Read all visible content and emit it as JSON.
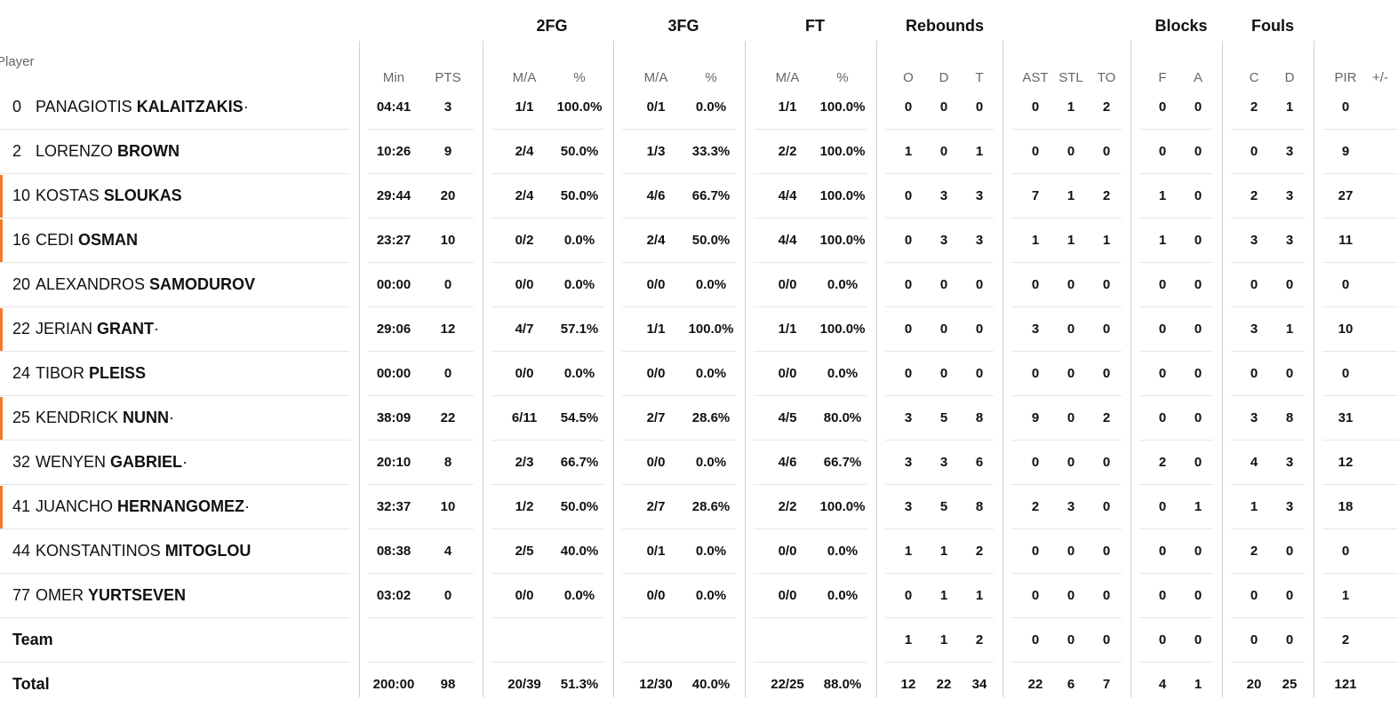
{
  "header": {
    "groups": [
      "2FG",
      "3FG",
      "FT",
      "Rebounds",
      "Blocks",
      "Fouls"
    ],
    "player_label": "Player",
    "subheaders": [
      "Min",
      "PTS",
      "M/A",
      "%",
      "M/A",
      "%",
      "M/A",
      "%",
      "O",
      "D",
      "T",
      "AST",
      "STL",
      "TO",
      "F",
      "A",
      "C",
      "D",
      "PIR",
      "+/-"
    ]
  },
  "accent_color": "#f07a2a",
  "players": [
    {
      "num": "0",
      "first": "PANAGIOTIS",
      "last": "KALAITZAKIS",
      "mark": "·",
      "starter": false,
      "stats": [
        "04:41",
        "3",
        "1/1",
        "100.0%",
        "0/1",
        "0.0%",
        "1/1",
        "100.0%",
        "0",
        "0",
        "0",
        "0",
        "1",
        "2",
        "0",
        "0",
        "2",
        "1",
        "0",
        ""
      ]
    },
    {
      "num": "2",
      "first": "LORENZO",
      "last": "BROWN",
      "mark": "",
      "starter": false,
      "stats": [
        "10:26",
        "9",
        "2/4",
        "50.0%",
        "1/3",
        "33.3%",
        "2/2",
        "100.0%",
        "1",
        "0",
        "1",
        "0",
        "0",
        "0",
        "0",
        "0",
        "0",
        "3",
        "9",
        ""
      ]
    },
    {
      "num": "10",
      "first": "KOSTAS",
      "last": "SLOUKAS",
      "mark": "",
      "starter": true,
      "stats": [
        "29:44",
        "20",
        "2/4",
        "50.0%",
        "4/6",
        "66.7%",
        "4/4",
        "100.0%",
        "0",
        "3",
        "3",
        "7",
        "1",
        "2",
        "1",
        "0",
        "2",
        "3",
        "27",
        ""
      ]
    },
    {
      "num": "16",
      "first": "CEDI",
      "last": "OSMAN",
      "mark": "",
      "starter": true,
      "stats": [
        "23:27",
        "10",
        "0/2",
        "0.0%",
        "2/4",
        "50.0%",
        "4/4",
        "100.0%",
        "0",
        "3",
        "3",
        "1",
        "1",
        "1",
        "1",
        "0",
        "3",
        "3",
        "11",
        ""
      ]
    },
    {
      "num": "20",
      "first": "ALEXANDROS",
      "last": "SAMODUROV",
      "mark": "",
      "starter": false,
      "stats": [
        "00:00",
        "0",
        "0/0",
        "0.0%",
        "0/0",
        "0.0%",
        "0/0",
        "0.0%",
        "0",
        "0",
        "0",
        "0",
        "0",
        "0",
        "0",
        "0",
        "0",
        "0",
        "0",
        ""
      ]
    },
    {
      "num": "22",
      "first": "JERIAN",
      "last": "GRANT",
      "mark": "·",
      "starter": true,
      "stats": [
        "29:06",
        "12",
        "4/7",
        "57.1%",
        "1/1",
        "100.0%",
        "1/1",
        "100.0%",
        "0",
        "0",
        "0",
        "3",
        "0",
        "0",
        "0",
        "0",
        "3",
        "1",
        "10",
        ""
      ]
    },
    {
      "num": "24",
      "first": "TIBOR",
      "last": "PLEISS",
      "mark": "",
      "starter": false,
      "stats": [
        "00:00",
        "0",
        "0/0",
        "0.0%",
        "0/0",
        "0.0%",
        "0/0",
        "0.0%",
        "0",
        "0",
        "0",
        "0",
        "0",
        "0",
        "0",
        "0",
        "0",
        "0",
        "0",
        ""
      ]
    },
    {
      "num": "25",
      "first": "KENDRICK",
      "last": "NUNN",
      "mark": "·",
      "starter": true,
      "stats": [
        "38:09",
        "22",
        "6/11",
        "54.5%",
        "2/7",
        "28.6%",
        "4/5",
        "80.0%",
        "3",
        "5",
        "8",
        "9",
        "0",
        "2",
        "0",
        "0",
        "3",
        "8",
        "31",
        ""
      ]
    },
    {
      "num": "32",
      "first": "WENYEN",
      "last": "GABRIEL",
      "mark": "·",
      "starter": false,
      "stats": [
        "20:10",
        "8",
        "2/3",
        "66.7%",
        "0/0",
        "0.0%",
        "4/6",
        "66.7%",
        "3",
        "3",
        "6",
        "0",
        "0",
        "0",
        "2",
        "0",
        "4",
        "3",
        "12",
        ""
      ]
    },
    {
      "num": "41",
      "first": "JUANCHO",
      "last": "HERNANGOMEZ",
      "mark": "·",
      "starter": true,
      "stats": [
        "32:37",
        "10",
        "1/2",
        "50.0%",
        "2/7",
        "28.6%",
        "2/2",
        "100.0%",
        "3",
        "5",
        "8",
        "2",
        "3",
        "0",
        "0",
        "1",
        "1",
        "3",
        "18",
        ""
      ]
    },
    {
      "num": "44",
      "first": "KONSTANTINOS",
      "last": "MITOGLOU",
      "mark": "",
      "starter": false,
      "stats": [
        "08:38",
        "4",
        "2/5",
        "40.0%",
        "0/1",
        "0.0%",
        "0/0",
        "0.0%",
        "1",
        "1",
        "2",
        "0",
        "0",
        "0",
        "0",
        "0",
        "2",
        "0",
        "0",
        ""
      ]
    },
    {
      "num": "77",
      "first": "OMER",
      "last": "YURTSEVEN",
      "mark": "",
      "starter": false,
      "stats": [
        "03:02",
        "0",
        "0/0",
        "0.0%",
        "0/0",
        "0.0%",
        "0/0",
        "0.0%",
        "0",
        "1",
        "1",
        "0",
        "0",
        "0",
        "0",
        "0",
        "0",
        "0",
        "1",
        ""
      ]
    }
  ],
  "team": {
    "label": "Team",
    "stats": [
      "",
      "",
      "",
      "",
      "",
      "",
      "",
      "",
      "1",
      "1",
      "2",
      "0",
      "0",
      "0",
      "0",
      "0",
      "0",
      "0",
      "2",
      ""
    ]
  },
  "total": {
    "label": "Total",
    "stats": [
      "200:00",
      "98",
      "20/39",
      "51.3%",
      "12/30",
      "40.0%",
      "22/25",
      "88.0%",
      "12",
      "22",
      "34",
      "22",
      "6",
      "7",
      "4",
      "1",
      "20",
      "25",
      "121",
      ""
    ]
  }
}
